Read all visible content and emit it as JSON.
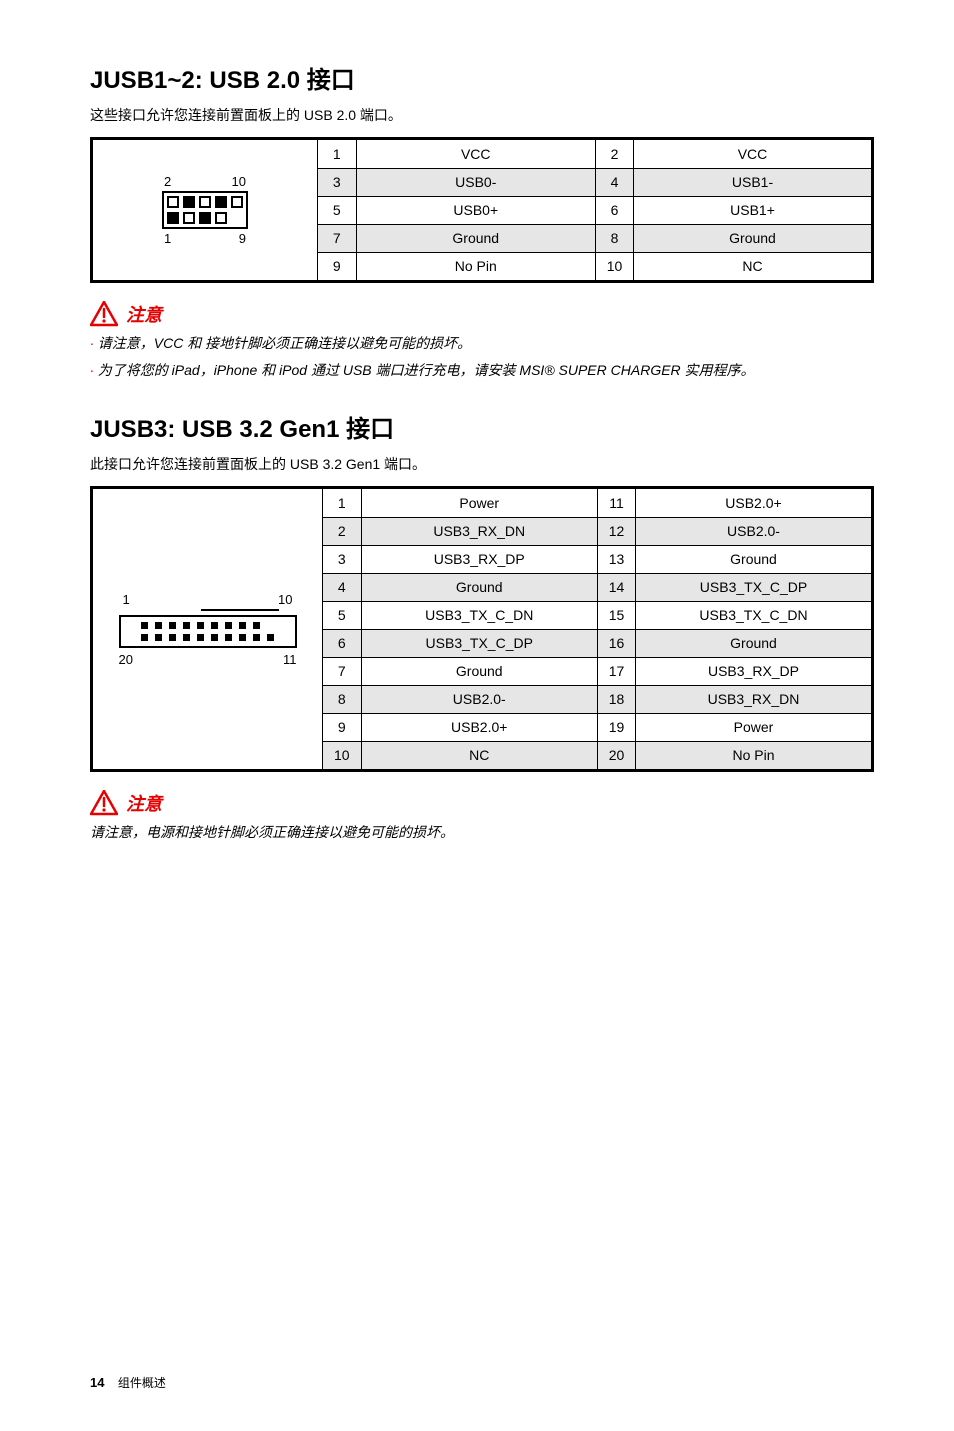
{
  "section1": {
    "title": "JUSB1~2: USB 2.0 接口",
    "desc": "这些接口允许您连接前置面板上的 USB 2.0 端口。",
    "diagram": {
      "top_left": "2",
      "top_right": "10",
      "bottom_left": "1",
      "bottom_right": "9"
    },
    "rows": [
      {
        "n1": "1",
        "s1": "VCC",
        "n2": "2",
        "s2": "VCC",
        "shaded": false
      },
      {
        "n1": "3",
        "s1": "USB0-",
        "n2": "4",
        "s2": "USB1-",
        "shaded": true
      },
      {
        "n1": "5",
        "s1": "USB0+",
        "n2": "6",
        "s2": "USB1+",
        "shaded": false
      },
      {
        "n1": "7",
        "s1": "Ground",
        "n2": "8",
        "s2": "Ground",
        "shaded": true
      },
      {
        "n1": "9",
        "s1": "No Pin",
        "n2": "10",
        "s2": "NC",
        "shaded": false
      }
    ]
  },
  "warning1": {
    "label": "注意",
    "line1": "请注意，VCC 和 接地针脚必须正确连接以避免可能的损坏。",
    "line2": "为了将您的 iPad，iPhone 和 iPod 通过 USB 端口进行充电，请安装 MSI® SUPER CHARGER 实用程序。"
  },
  "section2": {
    "title": "JUSB3: USB 3.2 Gen1 接口",
    "desc": "此接口允许您连接前置面板上的 USB 3.2 Gen1 端口。",
    "diagram": {
      "top_left": "1",
      "top_right": "10",
      "bottom_left": "20",
      "bottom_right": "11"
    },
    "rows": [
      {
        "n1": "1",
        "s1": "Power",
        "n2": "11",
        "s2": "USB2.0+",
        "shaded": false
      },
      {
        "n1": "2",
        "s1": "USB3_RX_DN",
        "n2": "12",
        "s2": "USB2.0-",
        "shaded": true
      },
      {
        "n1": "3",
        "s1": "USB3_RX_DP",
        "n2": "13",
        "s2": "Ground",
        "shaded": false
      },
      {
        "n1": "4",
        "s1": "Ground",
        "n2": "14",
        "s2": "USB3_TX_C_DP",
        "shaded": true
      },
      {
        "n1": "5",
        "s1": "USB3_TX_C_DN",
        "n2": "15",
        "s2": "USB3_TX_C_DN",
        "shaded": false
      },
      {
        "n1": "6",
        "s1": "USB3_TX_C_DP",
        "n2": "16",
        "s2": "Ground",
        "shaded": true
      },
      {
        "n1": "7",
        "s1": "Ground",
        "n2": "17",
        "s2": "USB3_RX_DP",
        "shaded": false
      },
      {
        "n1": "8",
        "s1": "USB2.0-",
        "n2": "18",
        "s2": "USB3_RX_DN",
        "shaded": true
      },
      {
        "n1": "9",
        "s1": "USB2.0+",
        "n2": "19",
        "s2": "Power",
        "shaded": false
      },
      {
        "n1": "10",
        "s1": "NC",
        "n2": "20",
        "s2": "No Pin",
        "shaded": true
      }
    ]
  },
  "warning2": {
    "label": "注意",
    "line1": "请注意，电源和接地针脚必须正确连接以避免可能的损坏。"
  },
  "footer": {
    "page": "14",
    "label": "组件概述"
  }
}
